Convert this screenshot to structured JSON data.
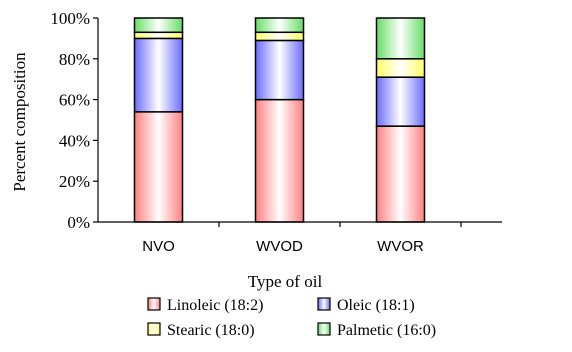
{
  "chart_data": {
    "type": "bar",
    "stacked": true,
    "percent_stacked": true,
    "categories": [
      "NVO",
      "WVOD",
      "WVOR"
    ],
    "series": [
      {
        "name": "Linoleic (18:2)",
        "color": "#ff8080",
        "values": [
          54,
          60,
          47
        ]
      },
      {
        "name": "Oleic (18:1)",
        "color": "#6b6bff",
        "values": [
          36,
          29,
          24
        ]
      },
      {
        "name": "Stearic (18:0)",
        "color": "#ffff66",
        "values": [
          3,
          4,
          9
        ]
      },
      {
        "name": "Palmetic (16:0)",
        "color": "#66dd66",
        "values": [
          7,
          7,
          20
        ]
      }
    ],
    "xlabel": "Type of oil",
    "ylabel": "Percent composition",
    "ylim": [
      0,
      100
    ],
    "yticks": [
      "0%",
      "20%",
      "40%",
      "60%",
      "80%",
      "100%"
    ],
    "grid": false,
    "legend_position": "bottom"
  }
}
